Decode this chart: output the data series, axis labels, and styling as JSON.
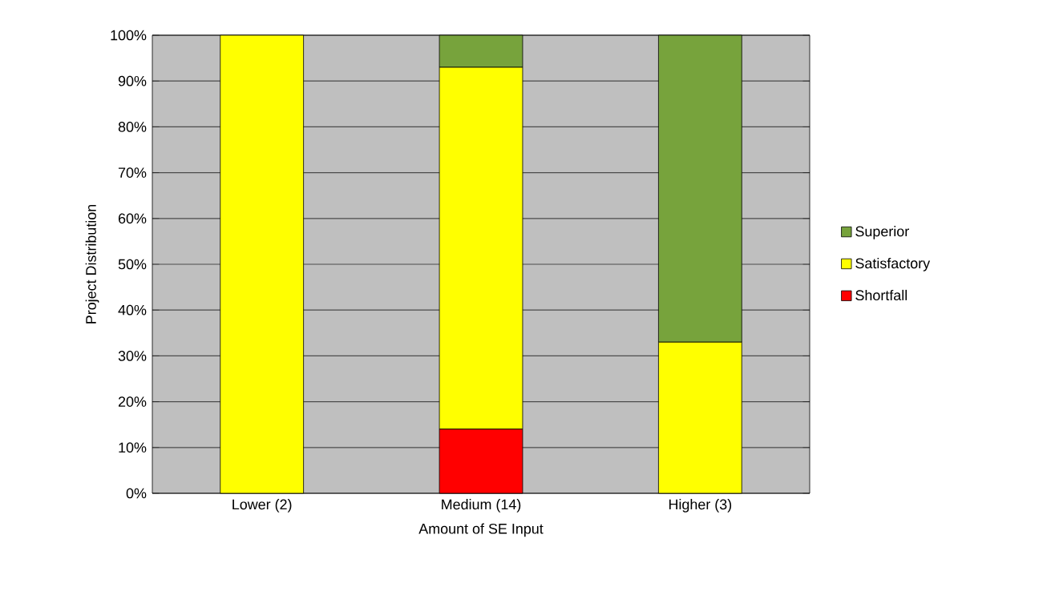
{
  "chart_data": {
    "type": "bar",
    "stacked": true,
    "xlabel": "Amount of SE Input",
    "ylabel": "Project Distribution",
    "categories": [
      "Lower (2)",
      "Medium (14)",
      "Higher (3)"
    ],
    "series": [
      {
        "name": "Shortfall",
        "color": "#ff0000",
        "values": [
          0,
          14,
          0
        ]
      },
      {
        "name": "Satisfactory",
        "color": "#ffff00",
        "values": [
          100,
          79,
          33
        ]
      },
      {
        "name": "Superior",
        "color": "#77a33c",
        "values": [
          0,
          7,
          67
        ]
      }
    ],
    "ylim": [
      0,
      100
    ],
    "yticks": [
      {
        "value": 0,
        "label": "0%"
      },
      {
        "value": 10,
        "label": "10%"
      },
      {
        "value": 20,
        "label": "20%"
      },
      {
        "value": 30,
        "label": "30%"
      },
      {
        "value": 40,
        "label": "40%"
      },
      {
        "value": 50,
        "label": "50%"
      },
      {
        "value": 60,
        "label": "60%"
      },
      {
        "value": 70,
        "label": "70%"
      },
      {
        "value": 80,
        "label": "80%"
      },
      {
        "value": 90,
        "label": "90%"
      },
      {
        "value": 100,
        "label": "100%"
      }
    ],
    "grid": "y",
    "legend": "right"
  }
}
